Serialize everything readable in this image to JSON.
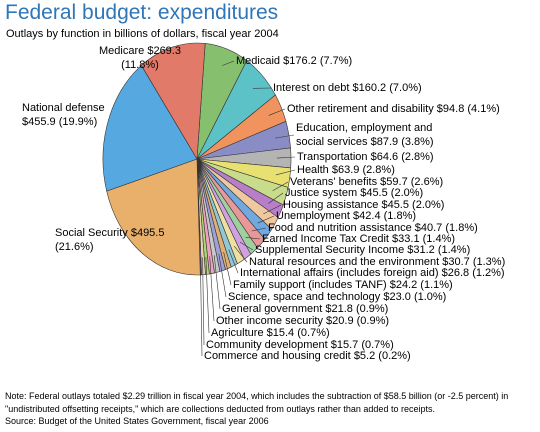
{
  "chart_data": {
    "type": "pie",
    "title": "Federal budget: expenditures",
    "subtitle": "Outlays by function in billions of dollars, fiscal year 2004",
    "categories": [
      "Medicaid",
      "Interest on debt",
      "Other retirement and disability",
      "Education, employment and social services",
      "Transportation",
      "Health",
      "Veterans' benefits",
      "Justice system",
      "Housing assistance",
      "Unemployment",
      "Food and nutrition assistance",
      "Earned Income Tax Credit",
      "Supplemental Security Income",
      "Natural resources and the environment",
      "International affairs (includes foreign aid)",
      "Family support (includes TANF)",
      "Science, space and technology",
      "General government",
      "Other income security",
      "Agriculture",
      "Community development",
      "Commerce and housing credit",
      "Social Security",
      "National defense",
      "Medicare"
    ],
    "values": [
      176.2,
      160.2,
      94.8,
      87.9,
      64.6,
      63.9,
      59.7,
      45.5,
      45.5,
      42.4,
      40.7,
      33.1,
      31.2,
      30.7,
      26.8,
      24.2,
      23.0,
      21.8,
      20.9,
      15.4,
      15.7,
      5.2,
      495.5,
      455.9,
      269.3
    ],
    "value_labels": [
      "$176.2",
      "$160.2",
      "$94.8",
      "$87.9",
      "$64.6",
      "$63.9",
      "$59.7",
      "$45.5",
      "$45.5",
      "$42.4",
      "$40.7",
      "$33.1",
      "$31.2",
      "$30.7",
      "$26.8",
      "$24.2",
      "$23.0",
      "$21.8",
      "$20.9",
      "$15.4",
      "$15.7",
      "$5.2",
      "$495.5",
      "$455.9",
      "$269.3"
    ],
    "shares": [
      7.7,
      7.0,
      4.1,
      3.8,
      2.8,
      2.8,
      2.6,
      2.0,
      2.0,
      1.8,
      1.8,
      1.4,
      1.4,
      1.3,
      1.2,
      1.1,
      1.0,
      0.9,
      0.9,
      0.7,
      0.7,
      0.2,
      21.6,
      19.9,
      11.8
    ],
    "share_labels": [
      "(7.7%)",
      "(7.0%)",
      "(4.1%)",
      "(3.8%)",
      "(2.8%)",
      "(2.8%)",
      "(2.6%)",
      "(2.0%)",
      "(2.0%)",
      "(1.8%)",
      "(1.8%)",
      "(1.4%)",
      "(1.4%)",
      "(1.3%)",
      "(1.2%)",
      "(1.1%)",
      "(1.0%)",
      "(0.9%)",
      "(0.9%)",
      "(0.7%)",
      "(0.7%)",
      "(0.2%)",
      "(21.6%)",
      "(19.9%)",
      "(11.8%)"
    ],
    "colors": [
      "#86c06e",
      "#5cc2c8",
      "#f0935e",
      "#8a8cc6",
      "#b4b4b4",
      "#e8e070",
      "#c8dc8c",
      "#b87ec8",
      "#f0c8a0",
      "#70a8e0",
      "#e89898",
      "#a0d0a0",
      "#d0a0e0",
      "#f0e0a0",
      "#90c8d8",
      "#e0b070",
      "#a0a0d8",
      "#c8c8c8",
      "#f0a0c0",
      "#b0d870",
      "#e8d0b0",
      "#8080c0",
      "#e8b06a",
      "#55a8e0",
      "#e27a6a"
    ],
    "note": "Note: Federal outlays totaled $2.29 trillion in fiscal year 2004, which includes the subtraction of $58.5 billion (or -2.5 percent) in \"undistributed offsetting receipts,\" which are collections deducted from outlays rather than added to receipts.",
    "source": "Source: Budget of the United States Government, fiscal year 2006"
  }
}
